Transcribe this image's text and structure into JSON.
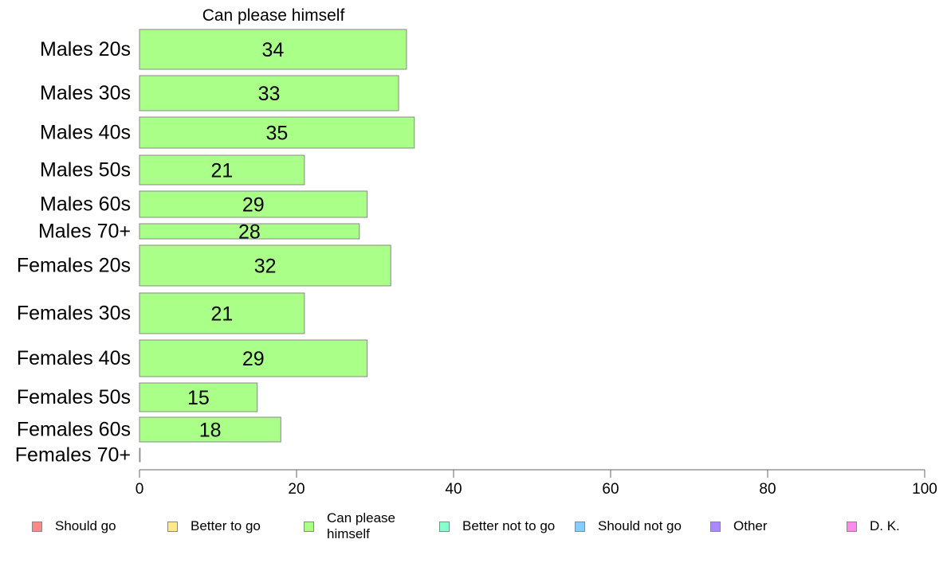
{
  "chart_data": {
    "type": "bar",
    "orientation": "horizontal",
    "title": "Can please himself",
    "categories": [
      "Males 20s",
      "Males 30s",
      "Males 40s",
      "Males 50s",
      "Males 60s",
      "Males 70+",
      "Females 20s",
      "Females 30s",
      "Females 40s",
      "Females 50s",
      "Females 60s",
      "Females 70+"
    ],
    "values": [
      34,
      33,
      35,
      21,
      29,
      28,
      32,
      21,
      29,
      15,
      18,
      0
    ],
    "value_labels": [
      "34",
      "33",
      "35",
      "21",
      "29",
      "28",
      "32",
      "21",
      "29",
      "15",
      "18",
      ""
    ],
    "xlim": [
      0,
      100
    ],
    "x_ticks": [
      0,
      20,
      40,
      60,
      80,
      100
    ],
    "bar_color": "#aaff88",
    "bar_stroke": "#888888",
    "legend": [
      {
        "label": "Should go",
        "color": "#ff8888"
      },
      {
        "label": "Better to go",
        "color": "#ffe888"
      },
      {
        "label": "Can please himself",
        "color": "#aaff88"
      },
      {
        "label": "Better not to go",
        "color": "#88ffcc"
      },
      {
        "label": "Should not go",
        "color": "#88ccff"
      },
      {
        "label": "Other",
        "color": "#aa88ff"
      },
      {
        "label": "D. K.",
        "color": "#ff88ee"
      }
    ],
    "legend_position": "bottom",
    "grid": false
  }
}
